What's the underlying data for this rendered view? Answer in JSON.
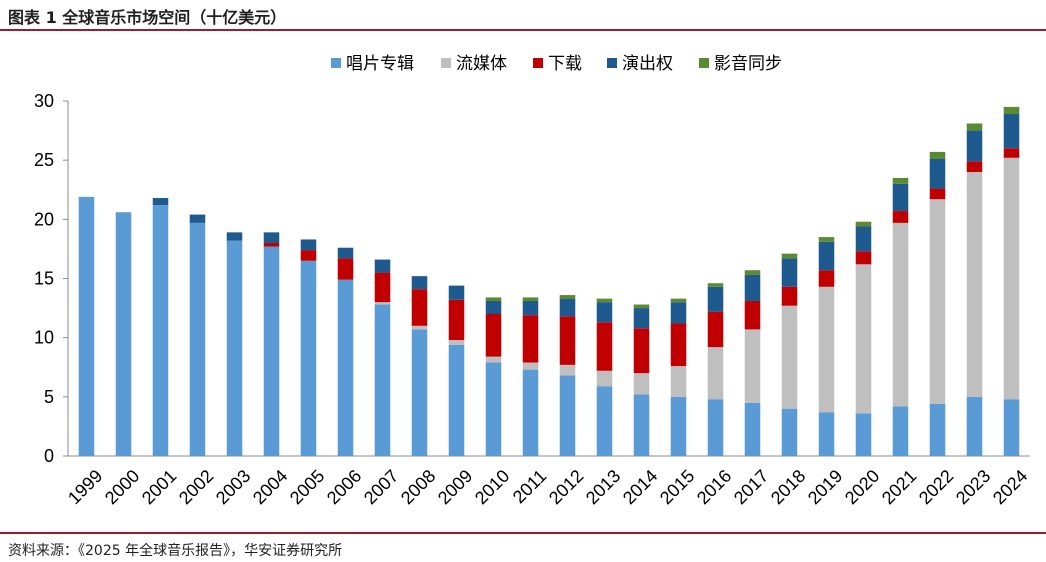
{
  "title": "图表 1 全球音乐市场空间（十亿美元）",
  "source": "资料来源：《2025 年全球音乐报告》，华安证券研究所",
  "chart_data": {
    "type": "bar",
    "stacked": true,
    "categories": [
      "1999",
      "2000",
      "2001",
      "2002",
      "2003",
      "2004",
      "2005",
      "2006",
      "2007",
      "2008",
      "2009",
      "2010",
      "2011",
      "2012",
      "2013",
      "2014",
      "2015",
      "2016",
      "2017",
      "2018",
      "2019",
      "2020",
      "2021",
      "2022",
      "2023",
      "2024"
    ],
    "series": [
      {
        "name": "唱片专辑",
        "color": "#5b9bd5",
        "values": [
          21.9,
          20.6,
          21.2,
          19.7,
          18.2,
          17.7,
          16.5,
          14.9,
          12.8,
          10.7,
          9.4,
          7.9,
          7.3,
          6.8,
          5.9,
          5.2,
          5.0,
          4.8,
          4.5,
          4.0,
          3.7,
          3.6,
          4.2,
          4.4,
          5.0,
          4.8
        ]
      },
      {
        "name": "流媒体",
        "color": "#bfbfbf",
        "values": [
          0,
          0,
          0,
          0,
          0,
          0,
          0,
          0,
          0.2,
          0.3,
          0.4,
          0.5,
          0.6,
          0.9,
          1.3,
          1.8,
          2.6,
          4.4,
          6.2,
          8.7,
          10.6,
          12.6,
          15.5,
          17.3,
          19.0,
          20.4
        ]
      },
      {
        "name": "下载",
        "color": "#c00000",
        "values": [
          0,
          0,
          0,
          0,
          0,
          0.3,
          0.9,
          1.8,
          2.5,
          3.1,
          3.4,
          3.6,
          4.0,
          4.1,
          4.1,
          3.8,
          3.6,
          3.0,
          2.4,
          1.6,
          1.4,
          1.1,
          1.0,
          0.9,
          0.9,
          0.8
        ]
      },
      {
        "name": "演出权",
        "color": "#1f5a8f",
        "values": [
          0,
          0,
          0.6,
          0.7,
          0.7,
          0.9,
          0.9,
          0.9,
          1.1,
          1.1,
          1.2,
          1.1,
          1.2,
          1.5,
          1.7,
          1.7,
          1.8,
          2.1,
          2.2,
          2.4,
          2.4,
          2.1,
          2.3,
          2.5,
          2.6,
          2.9
        ]
      },
      {
        "name": "影音同步",
        "color": "#5a8a32",
        "values": [
          0,
          0,
          0,
          0,
          0,
          0,
          0,
          0,
          0,
          0,
          0,
          0.3,
          0.3,
          0.3,
          0.3,
          0.3,
          0.3,
          0.3,
          0.4,
          0.4,
          0.4,
          0.4,
          0.5,
          0.6,
          0.6,
          0.6
        ]
      }
    ],
    "ylim": [
      0,
      30
    ],
    "yticks": [
      0,
      5,
      10,
      15,
      20,
      25,
      30
    ],
    "xlabel": "",
    "ylabel": "",
    "legend_position": "top-center",
    "grid": false
  }
}
